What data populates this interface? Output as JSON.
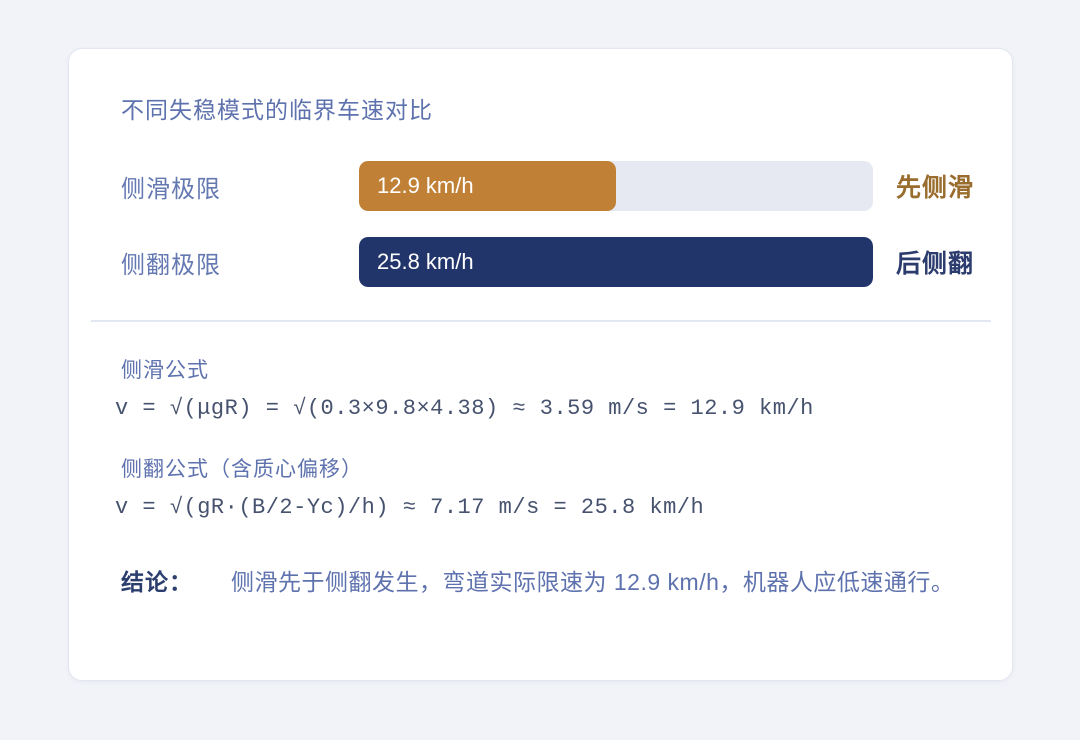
{
  "card": {
    "title": "不同失稳模式的临界车速对比"
  },
  "chart_data": {
    "type": "bar",
    "title": "不同失稳模式的临界车速对比",
    "orientation": "horizontal",
    "categories": [
      "侧滑极限",
      "侧翻极限"
    ],
    "values": [
      12.9,
      25.8
    ],
    "unit": "km/h",
    "xlim": [
      0,
      25.8
    ],
    "grid": false,
    "bars": [
      {
        "label": "侧滑极限",
        "value": 12.9,
        "display": "12.9 km/h",
        "tag": "先侧滑",
        "color": "#c08136",
        "tag_color": "#996d2d",
        "width_pct": "50%"
      },
      {
        "label": "侧翻极限",
        "value": 25.8,
        "display": "25.8 km/h",
        "tag": "后侧翻",
        "color": "#21356b",
        "tag_color": "#2c3c6e",
        "width_pct": "100%"
      }
    ],
    "track_color": "#e6e9f2"
  },
  "formulas": [
    {
      "heading": "侧滑公式",
      "expression": "v = √(μgR) = √(0.3×9.8×4.38) ≈ 3.59 m/s = 12.9 km/h"
    },
    {
      "heading": "侧翻公式（含质心偏移）",
      "expression": "v = √(gR·(B/2-Yc)/h) ≈ 7.17 m/s = 25.8 km/h"
    }
  ],
  "conclusion": {
    "label": "结论：",
    "text": "侧滑先于侧翻发生，弯道实际限速为 12.9 km/h，机器人应低速通行。"
  }
}
